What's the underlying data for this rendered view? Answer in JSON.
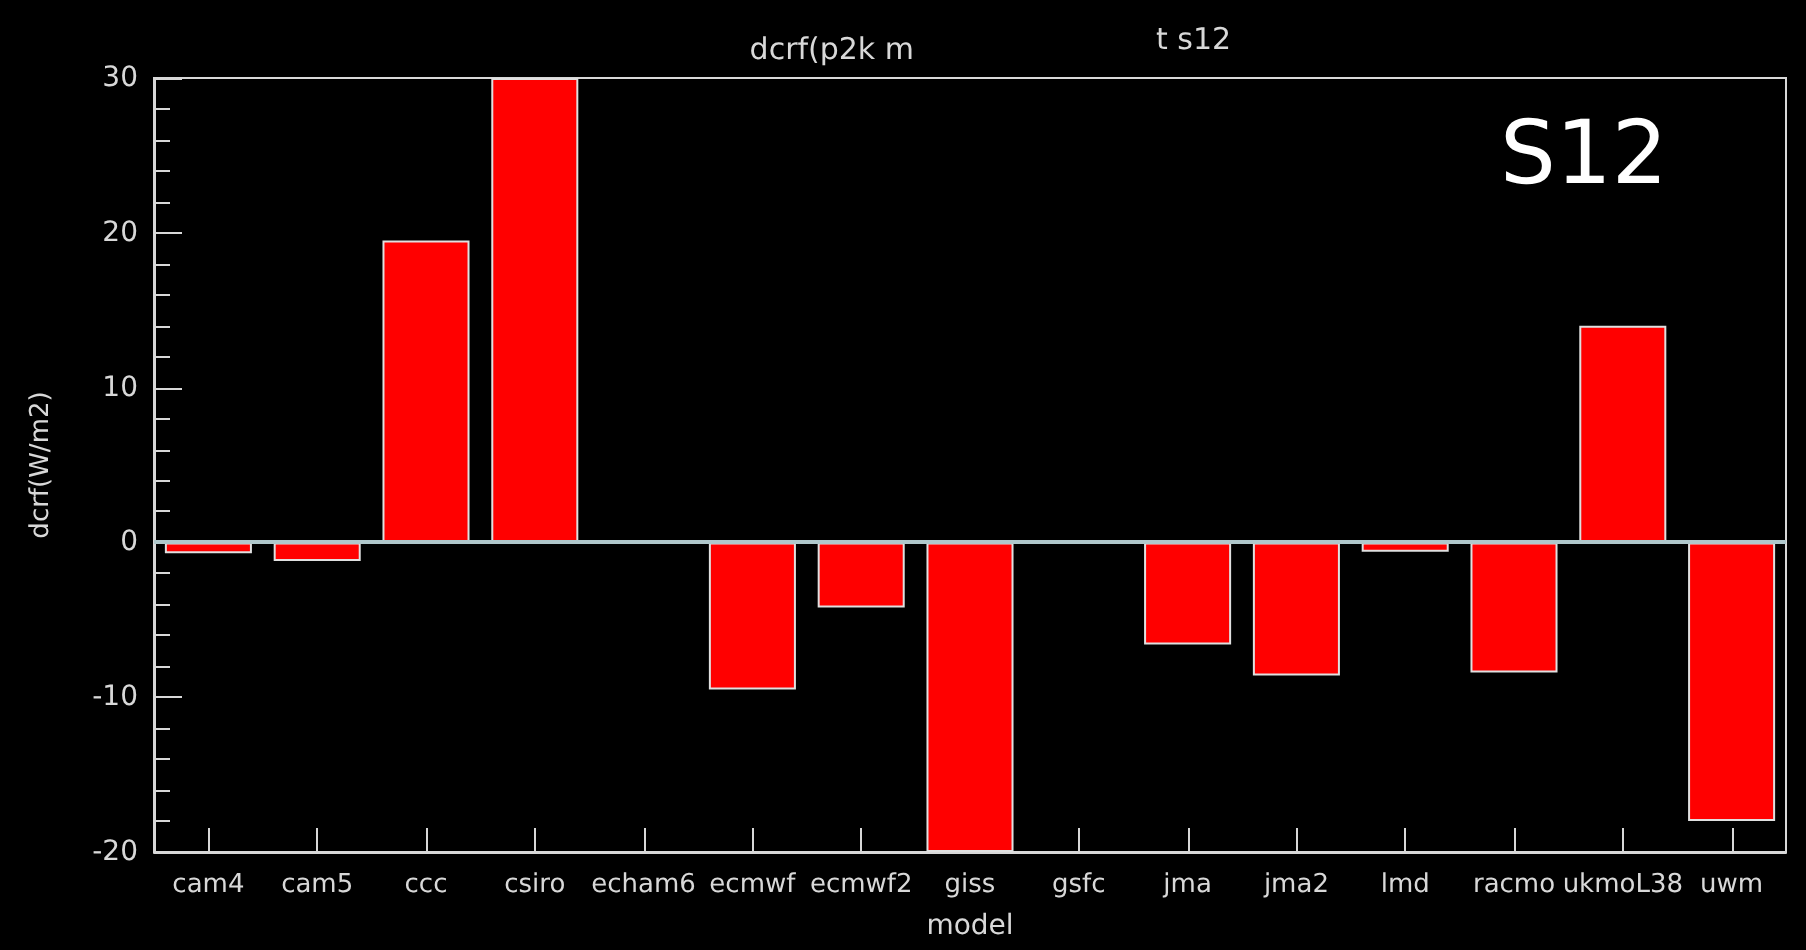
{
  "chart_data": {
    "type": "bar",
    "title": "dcrf(p2k m",
    "annotations": [
      "t s12",
      "S12"
    ],
    "xlabel": "model",
    "ylabel": "dcrf(W/m2)",
    "categories": [
      "cam4",
      "cam5",
      "ccc",
      "csiro",
      "echam6",
      "ecmwf",
      "ecmwf2",
      "giss",
      "gsfc",
      "jma",
      "jma2",
      "lmd",
      "racmo",
      "ukmoL38",
      "uwm"
    ],
    "values": [
      -0.7,
      -1.2,
      19.5,
      30,
      null,
      -9.5,
      -4.2,
      -20,
      null,
      -6.6,
      -8.6,
      -0.6,
      -8.4,
      14.0,
      -18.0
    ],
    "color": "#ff0000",
    "ylim": [
      -20,
      30
    ],
    "yticks": [
      -20,
      -10,
      0,
      10,
      20,
      30
    ],
    "ref_lines": [
      {
        "axis": "y",
        "value": 0,
        "color": "#b0c8cc"
      }
    ],
    "grid": false
  }
}
